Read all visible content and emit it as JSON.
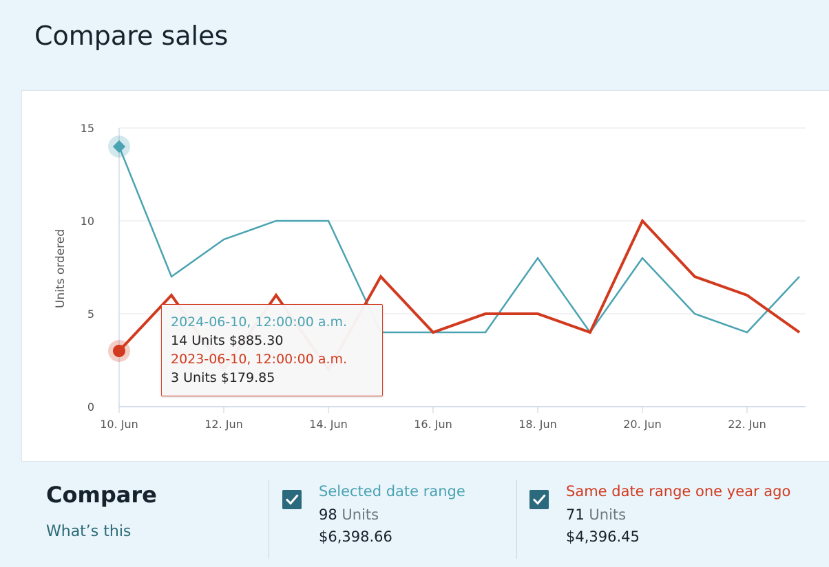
{
  "page": {
    "title": "Compare sales"
  },
  "chart_data": {
    "type": "line",
    "ylabel": "Units ordered",
    "xlabel": "",
    "ylim": [
      0,
      15
    ],
    "yticks": [
      0,
      5,
      10,
      15
    ],
    "x": [
      "10. Jun",
      "11. Jun",
      "12. Jun",
      "13. Jun",
      "14. Jun",
      "15. Jun",
      "16. Jun",
      "17. Jun",
      "18. Jun",
      "19. Jun",
      "20. Jun",
      "21. Jun",
      "22. Jun",
      "23. Jun"
    ],
    "xtick_labels": [
      "10. Jun",
      "12. Jun",
      "14. Jun",
      "16. Jun",
      "18. Jun",
      "20. Jun",
      "22. Jun"
    ],
    "grid": true,
    "series": [
      {
        "name": "Selected date range",
        "color": "#4aa3b2",
        "values": [
          14,
          7,
          9,
          10,
          10,
          4,
          4,
          4,
          8,
          4,
          8,
          5,
          4,
          7
        ]
      },
      {
        "name": "Same date range one year ago",
        "color": "#d13a1e",
        "values": [
          3,
          6,
          2,
          6,
          2,
          7,
          4,
          5,
          5,
          4,
          10,
          7,
          6,
          4
        ]
      }
    ],
    "highlight_index": 0,
    "tooltip": {
      "line1": "2024-06-10, 12:00:00 a.m.",
      "line2": "14 Units $885.30",
      "line3": "2023-06-10, 12:00:00 a.m.",
      "line4": "3 Units $179.85"
    }
  },
  "compare": {
    "title": "Compare",
    "link": "What’s this",
    "current": {
      "label": "Selected date range",
      "units_value": "98",
      "units_word": "Units",
      "amount": "$6,398.66",
      "checked": "checked",
      "color": "#4aa3b2"
    },
    "previous": {
      "label": "Same date range one year ago",
      "units_value": "71",
      "units_word": "Units",
      "amount": "$4,396.45",
      "checked": "checked",
      "color": "#d13a1e"
    }
  }
}
